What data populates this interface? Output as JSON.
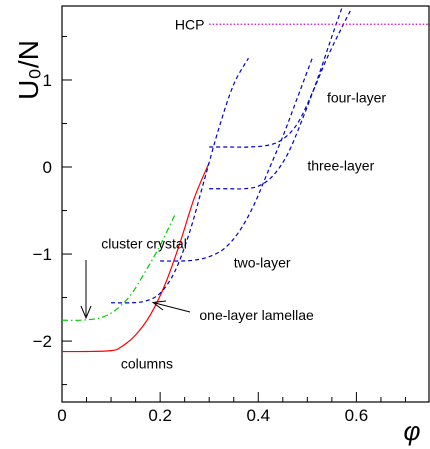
{
  "chart_data": {
    "type": "line",
    "title": "",
    "xlabel": "φ",
    "ylabel": "U₀/N",
    "xlim": [
      0,
      0.75
    ],
    "ylim": [
      -2.7,
      1.85
    ],
    "x_ticks": [
      0,
      0.2,
      0.4,
      0.6
    ],
    "x_tick_labels": [
      "0",
      "0.2",
      "0.4",
      "0.6"
    ],
    "y_ticks": [
      -2,
      -1,
      0,
      1
    ],
    "y_tick_labels": [
      "−2",
      "−1",
      "0",
      "1"
    ],
    "grid": false,
    "legend": "none",
    "series": [
      {
        "label": "columns",
        "color": "#ff0000",
        "style": "solid",
        "x": [
          0.0,
          0.05,
          0.1,
          0.12,
          0.15,
          0.18,
          0.21,
          0.24,
          0.27,
          0.3
        ],
        "y": [
          -2.12,
          -2.12,
          -2.11,
          -2.07,
          -1.93,
          -1.7,
          -1.35,
          -0.88,
          -0.35,
          0.05
        ]
      },
      {
        "label": "cluster crystal",
        "color": "#00cc00",
        "style": "dash-dot",
        "x": [
          0.0,
          0.04,
          0.08,
          0.11,
          0.14,
          0.17,
          0.2,
          0.23
        ],
        "y": [
          -1.76,
          -1.76,
          -1.73,
          -1.64,
          -1.47,
          -1.2,
          -0.9,
          -0.55
        ]
      },
      {
        "label": "one-layer lamellae",
        "color": "#0000cc",
        "style": "dashed",
        "x": [
          0.1,
          0.14,
          0.17,
          0.2,
          0.23,
          0.26,
          0.29,
          0.32,
          0.35,
          0.38
        ],
        "y": [
          -1.56,
          -1.56,
          -1.54,
          -1.45,
          -1.2,
          -0.75,
          -0.15,
          0.45,
          0.95,
          1.25
        ]
      },
      {
        "label": "two-layer",
        "color": "#0000cc",
        "style": "dashed",
        "x": [
          0.2,
          0.24,
          0.27,
          0.3,
          0.33,
          0.36,
          0.39,
          0.42,
          0.45,
          0.48,
          0.51
        ],
        "y": [
          -1.08,
          -1.08,
          -1.07,
          -1.03,
          -0.94,
          -0.75,
          -0.45,
          -0.05,
          0.35,
          0.8,
          1.25
        ]
      },
      {
        "label": "three-layer",
        "color": "#0000cc",
        "style": "dashed",
        "x": [
          0.3,
          0.34,
          0.37,
          0.4,
          0.43,
          0.46,
          0.49,
          0.52,
          0.55,
          0.57
        ],
        "y": [
          -0.25,
          -0.25,
          -0.25,
          -0.22,
          -0.1,
          0.15,
          0.55,
          1.0,
          1.5,
          1.82
        ]
      },
      {
        "label": "four-layer",
        "color": "#0000cc",
        "style": "dashed",
        "x": [
          0.3,
          0.34,
          0.38,
          0.42,
          0.45,
          0.48,
          0.51,
          0.54,
          0.57,
          0.59
        ],
        "y": [
          0.23,
          0.23,
          0.23,
          0.25,
          0.32,
          0.5,
          0.85,
          1.25,
          1.6,
          1.82
        ]
      },
      {
        "label": "HCP",
        "color": "#cc00cc",
        "style": "dotted",
        "x": [
          0.3,
          0.75
        ],
        "y": [
          1.64,
          1.64
        ]
      }
    ],
    "annotations": [
      {
        "text": "HCP",
        "x": 0.23,
        "y": 1.64
      },
      {
        "text": "four-layer",
        "x": 0.54,
        "y": 0.8
      },
      {
        "text": "three-layer",
        "x": 0.5,
        "y": 0.02
      },
      {
        "text": "two-layer",
        "x": 0.35,
        "y": -1.1
      },
      {
        "text": "one-layer lamellae",
        "x": 0.28,
        "y": -1.7
      },
      {
        "text": "cluster crystal",
        "x": 0.08,
        "y": -0.88
      },
      {
        "text": "columns",
        "x": 0.12,
        "y": -2.26
      }
    ]
  }
}
